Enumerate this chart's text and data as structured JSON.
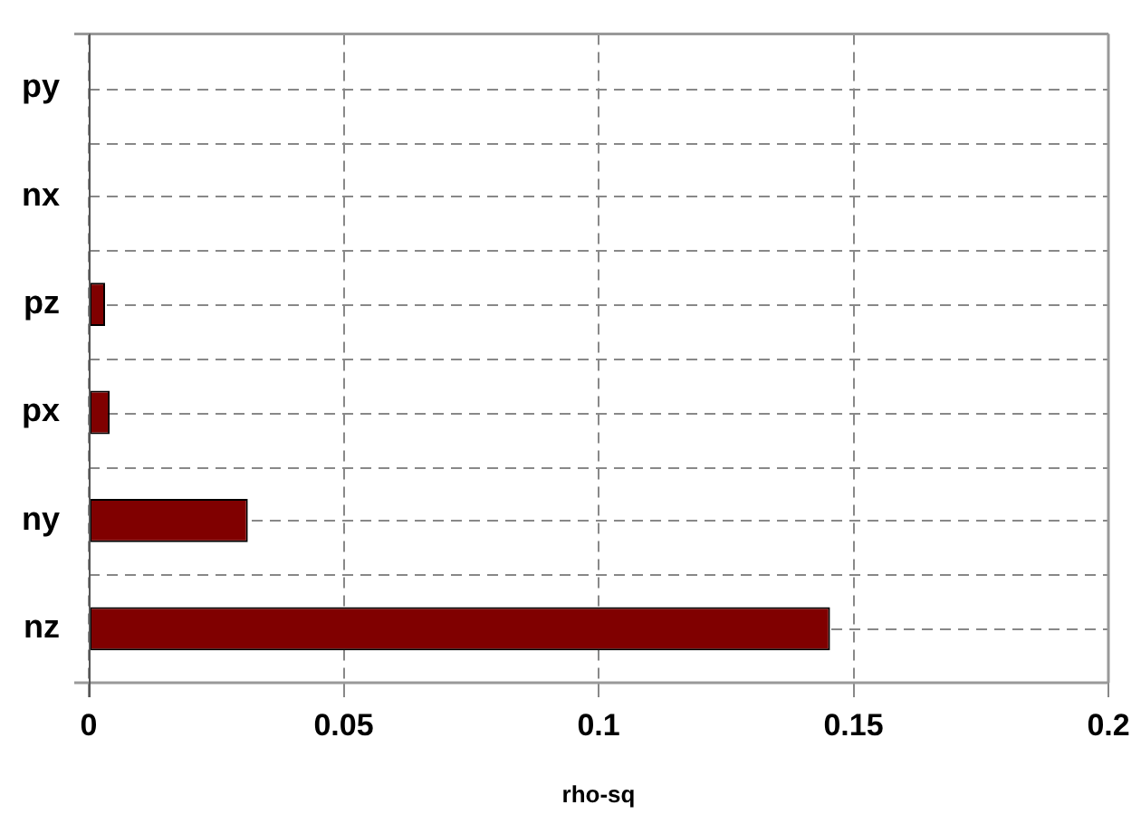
{
  "chart_data": {
    "type": "bar",
    "orientation": "horizontal",
    "xlabel": "rho-sq",
    "categories": [
      "py",
      "nx",
      "pz",
      "px",
      "ny",
      "nz"
    ],
    "values": [
      0,
      0,
      0.0032,
      0.0041,
      0.0312,
      0.1454
    ],
    "color": "#800000",
    "xlim": [
      0,
      0.2
    ],
    "xticks": [
      0,
      0.05,
      0.1,
      0.15,
      0.2
    ],
    "grid": true,
    "legend": false
  }
}
